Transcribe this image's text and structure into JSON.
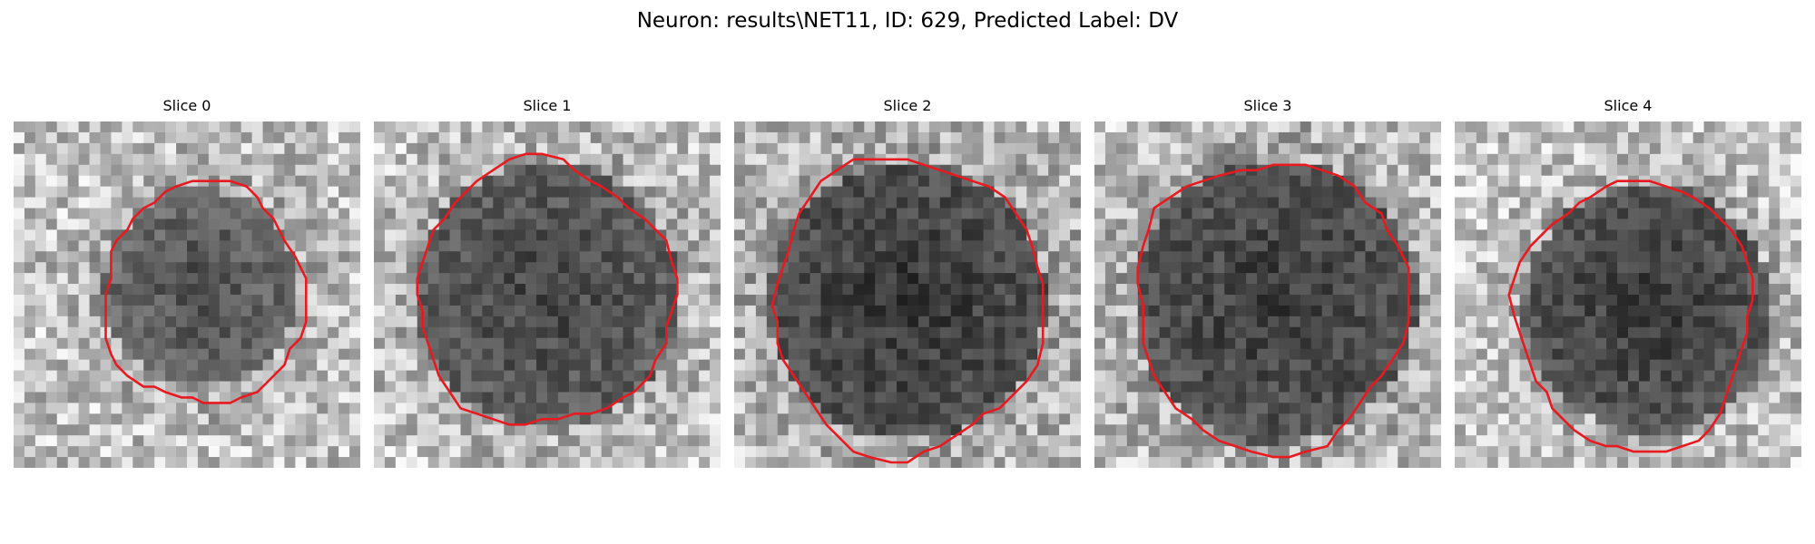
{
  "figure": {
    "title": "Neuron: results\\NET11, ID: 629, Predicted Label: DV"
  },
  "panels": [
    {
      "title": "Slice 0"
    },
    {
      "title": "Slice 1"
    },
    {
      "title": "Slice 2"
    },
    {
      "title": "Slice 3"
    },
    {
      "title": "Slice 4"
    }
  ],
  "colors": {
    "contour": "#e8191f",
    "background": "#ffffff"
  }
}
